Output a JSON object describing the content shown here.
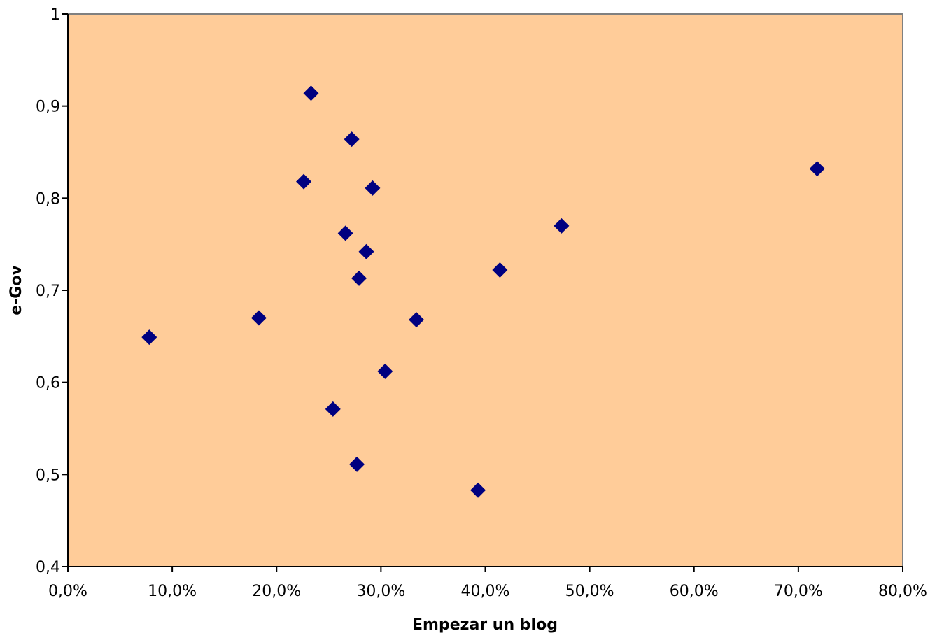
{
  "chart_data": {
    "type": "scatter",
    "title": "",
    "xlabel": "Empezar un blog",
    "ylabel": "e-Gov",
    "xlim": [
      0,
      80
    ],
    "ylim": [
      0.4,
      1
    ],
    "x_ticks": [
      0,
      10,
      20,
      30,
      40,
      50,
      60,
      70,
      80
    ],
    "x_tick_labels": [
      "0,0%",
      "10,0%",
      "20,0%",
      "30,0%",
      "40,0%",
      "50,0%",
      "60,0%",
      "70,0%",
      "80,0%"
    ],
    "y_ticks": [
      0.4,
      0.5,
      0.6,
      0.7,
      0.8,
      0.9,
      1.0
    ],
    "y_tick_labels": [
      "0,4",
      "0,5",
      "0,6",
      "0,7",
      "0,8",
      "0,9",
      "1"
    ],
    "grid": false,
    "legend": "none",
    "plot_background": "#FFCC99",
    "marker_color": "#000080",
    "marker_shape": "diamond",
    "points": [
      {
        "x": 7.8,
        "y": 0.649
      },
      {
        "x": 18.3,
        "y": 0.67
      },
      {
        "x": 22.6,
        "y": 0.818
      },
      {
        "x": 23.3,
        "y": 0.914
      },
      {
        "x": 25.4,
        "y": 0.571
      },
      {
        "x": 26.6,
        "y": 0.762
      },
      {
        "x": 27.2,
        "y": 0.864
      },
      {
        "x": 27.7,
        "y": 0.511
      },
      {
        "x": 27.9,
        "y": 0.713
      },
      {
        "x": 28.6,
        "y": 0.742
      },
      {
        "x": 29.2,
        "y": 0.811
      },
      {
        "x": 30.4,
        "y": 0.612
      },
      {
        "x": 33.4,
        "y": 0.668
      },
      {
        "x": 39.3,
        "y": 0.483
      },
      {
        "x": 41.4,
        "y": 0.722
      },
      {
        "x": 47.3,
        "y": 0.77
      },
      {
        "x": 71.8,
        "y": 0.832
      }
    ]
  }
}
